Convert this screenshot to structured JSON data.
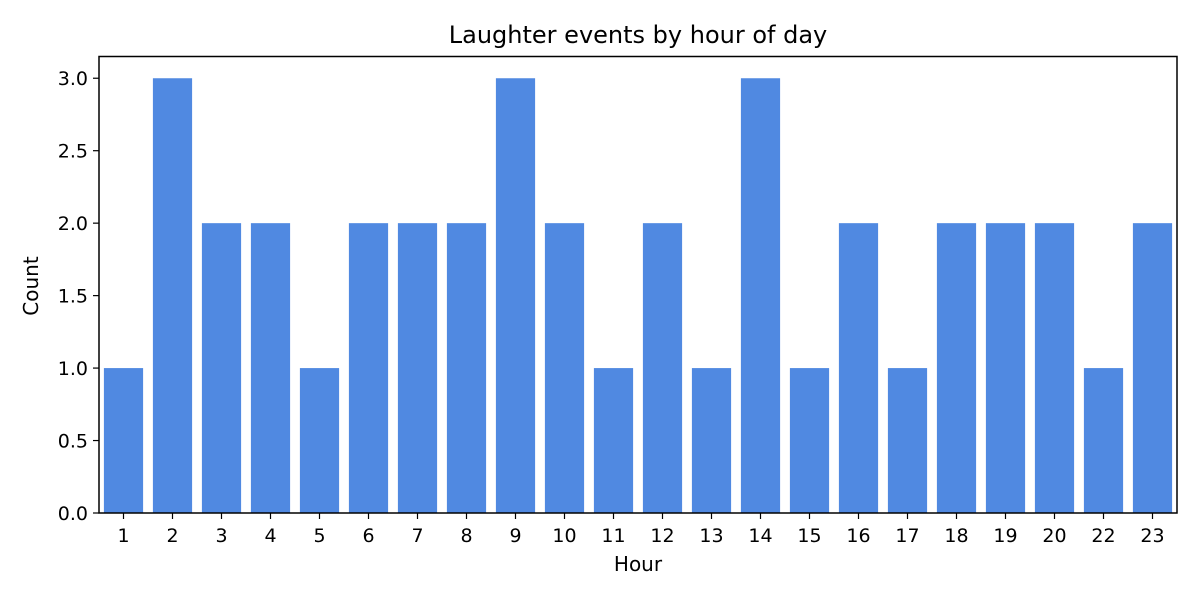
{
  "chart_data": {
    "type": "bar",
    "title": "Laughter events by hour of day",
    "xlabel": "Hour",
    "ylabel": "Count",
    "categories": [
      "1",
      "2",
      "3",
      "4",
      "5",
      "6",
      "7",
      "8",
      "9",
      "10",
      "11",
      "12",
      "13",
      "14",
      "15",
      "16",
      "17",
      "18",
      "19",
      "20",
      "22",
      "23"
    ],
    "values": [
      1,
      3,
      2,
      2,
      1,
      2,
      2,
      2,
      3,
      2,
      1,
      2,
      1,
      3,
      1,
      2,
      1,
      2,
      2,
      2,
      1,
      2
    ],
    "ylim": [
      0,
      3.15
    ],
    "yticks": [
      "0.0",
      "0.5",
      "1.0",
      "1.5",
      "2.0",
      "2.5",
      "3.0"
    ],
    "grid": false,
    "bar_color": "#5089E1"
  }
}
